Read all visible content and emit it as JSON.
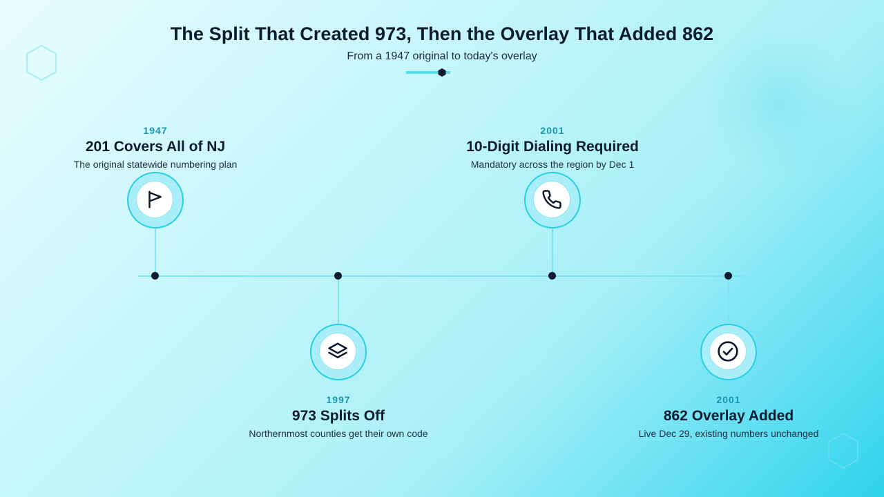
{
  "header": {
    "title": "The Split That Created 973, Then the Overlay That Added 862",
    "subtitle": "From a 1947 original to today's overlay"
  },
  "colors": {
    "accent": "#27cfe6",
    "line": "#7fe3f2",
    "dark": "#0d1b2e",
    "year": "#1796b0"
  },
  "events": [
    {
      "year": "1947",
      "title": "201 Covers All of NJ",
      "description": "The original statewide numbering plan",
      "icon": "flag-icon",
      "side": "top"
    },
    {
      "year": "1997",
      "title": "973 Splits Off",
      "description": "Northernmost counties get their own code",
      "icon": "layers-icon",
      "side": "bottom"
    },
    {
      "year": "2001",
      "title": "10-Digit Dialing Required",
      "description": "Mandatory across the region by Dec 1",
      "icon": "phone-icon",
      "side": "top"
    },
    {
      "year": "2001",
      "title": "862 Overlay Added",
      "description": "Live Dec 29, existing numbers unchanged",
      "icon": "check-circle-icon",
      "side": "bottom"
    }
  ]
}
